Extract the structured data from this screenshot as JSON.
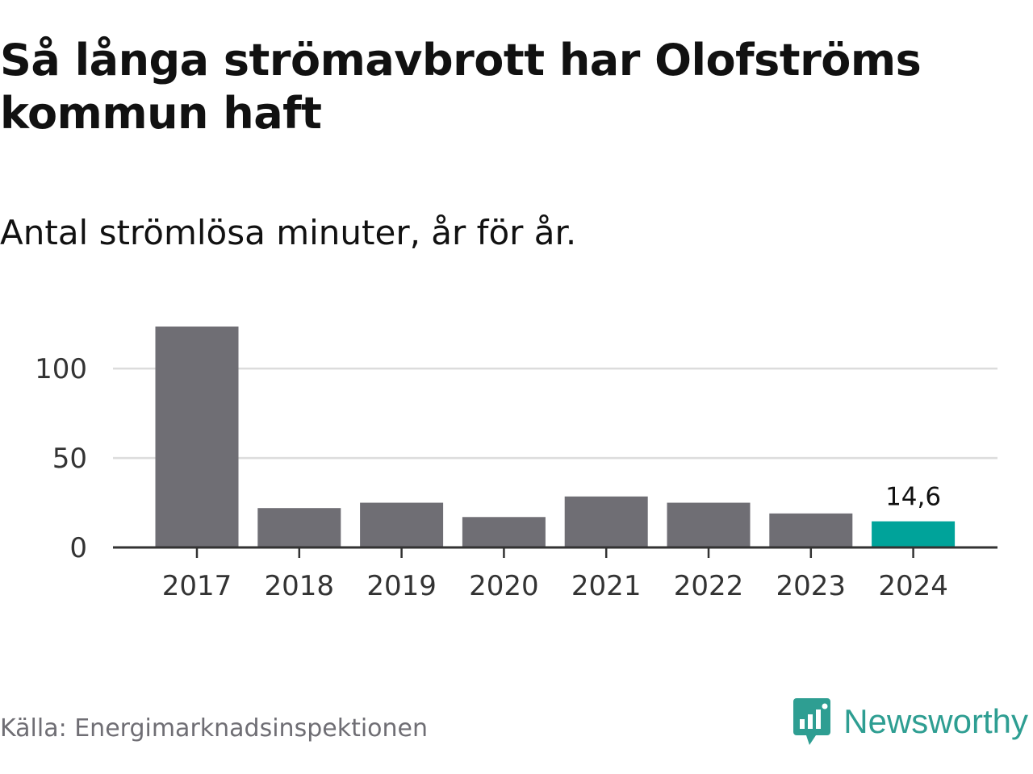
{
  "header": {
    "title": "Så långa strömavbrott har Olofströms kommun haft",
    "subtitle": "Antal strömlösa minuter, år för år."
  },
  "footer": {
    "source": "Källa: Energimarknadsinspektionen",
    "brand": "Newsworthy"
  },
  "colors": {
    "bar": "#6f6e74",
    "highlight": "#00a39a",
    "grid": "#dcdcdc",
    "axis": "#333333",
    "brand": "#2e9e92"
  },
  "chart_data": {
    "type": "bar",
    "title": "Så långa strömavbrott har Olofströms kommun haft",
    "subtitle": "Antal strömlösa minuter, år för år.",
    "categories": [
      "2017",
      "2018",
      "2019",
      "2020",
      "2021",
      "2022",
      "2023",
      "2024"
    ],
    "values": [
      123.5,
      22,
      25,
      17,
      28.5,
      25,
      19,
      14.6
    ],
    "highlight_index": 7,
    "data_labels": [
      {
        "index": 7,
        "text": "14,6"
      }
    ],
    "yticks": [
      {
        "value": 0,
        "label": "0"
      },
      {
        "value": 50,
        "label": "50"
      },
      {
        "value": 100,
        "label": "100"
      }
    ],
    "ylim": [
      0,
      123.5
    ],
    "xlabel": "",
    "ylabel": "",
    "grid": true
  }
}
